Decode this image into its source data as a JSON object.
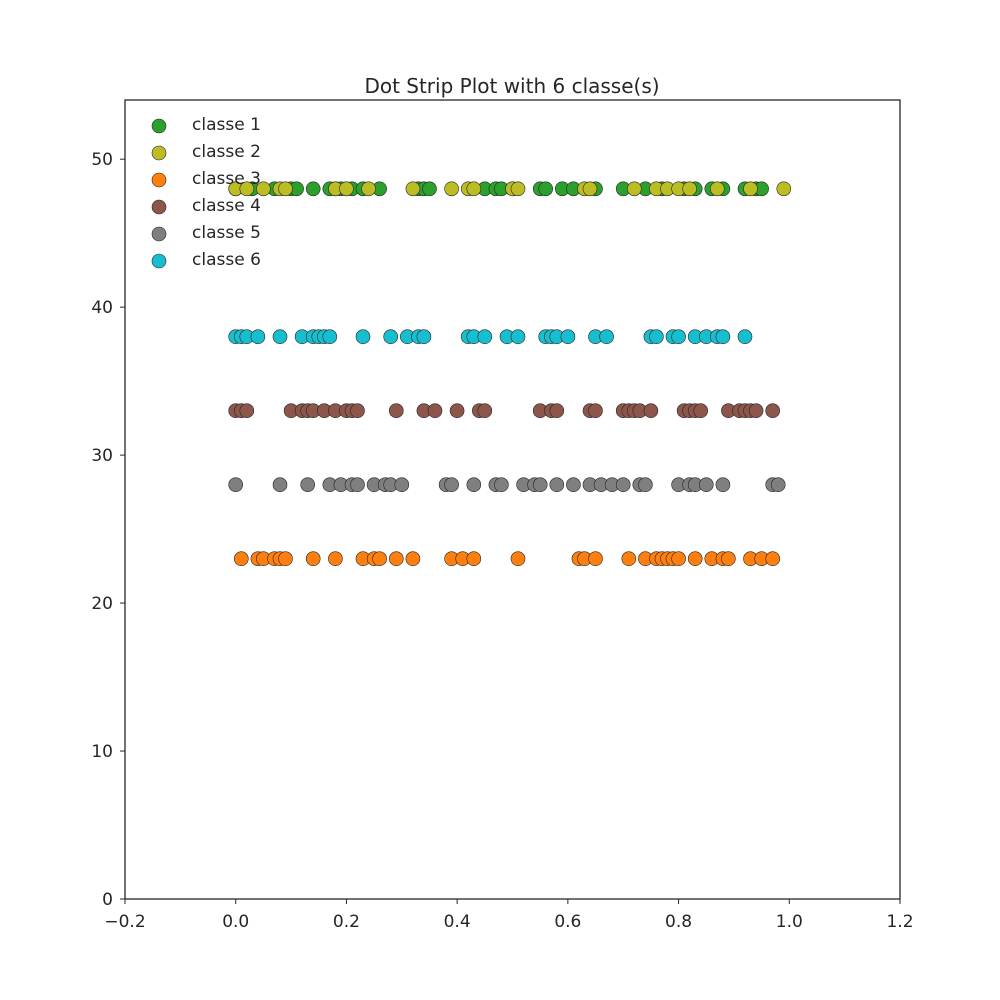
{
  "chart_data": {
    "type": "scatter",
    "title": "Dot Strip Plot with 6 classe(s)",
    "xlabel": "",
    "ylabel": "",
    "xlim": [
      -0.2,
      1.2
    ],
    "ylim": [
      0,
      54
    ],
    "xticks": [
      -0.2,
      0.0,
      0.2,
      0.4,
      0.6,
      0.8,
      1.0,
      1.2
    ],
    "xtick_labels": [
      "−0.2",
      "0.0",
      "0.2",
      "0.4",
      "0.6",
      "0.8",
      "1.0",
      "1.2"
    ],
    "yticks": [
      0,
      10,
      20,
      30,
      40,
      50
    ],
    "ytick_labels": [
      "0",
      "10",
      "20",
      "30",
      "40",
      "50"
    ],
    "grid": false,
    "legend_position": "top-left",
    "series": [
      {
        "name": "classe 1",
        "color": "#2ca02c",
        "y": 48,
        "x": [
          0.0,
          0.03,
          0.07,
          0.1,
          0.11,
          0.14,
          0.17,
          0.18,
          0.19,
          0.2,
          0.21,
          0.23,
          0.26,
          0.33,
          0.34,
          0.35,
          0.45,
          0.47,
          0.48,
          0.5,
          0.55,
          0.56,
          0.59,
          0.61,
          0.65,
          0.7,
          0.74,
          0.77,
          0.81,
          0.83,
          0.86,
          0.88,
          0.92,
          0.94,
          0.95
        ]
      },
      {
        "name": "classe 2",
        "color": "#bcbd22",
        "y": 48,
        "x": [
          0.0,
          0.02,
          0.05,
          0.08,
          0.09,
          0.18,
          0.2,
          0.24,
          0.32,
          0.39,
          0.42,
          0.43,
          0.5,
          0.51,
          0.63,
          0.64,
          0.72,
          0.76,
          0.78,
          0.8,
          0.82,
          0.87,
          0.93,
          0.99
        ]
      },
      {
        "name": "classe 3",
        "color": "#ff7f0e",
        "y": 23,
        "x": [
          0.01,
          0.04,
          0.05,
          0.07,
          0.08,
          0.09,
          0.14,
          0.18,
          0.23,
          0.25,
          0.26,
          0.29,
          0.32,
          0.39,
          0.41,
          0.43,
          0.51,
          0.62,
          0.63,
          0.65,
          0.71,
          0.74,
          0.76,
          0.77,
          0.78,
          0.79,
          0.8,
          0.83,
          0.86,
          0.88,
          0.89,
          0.93,
          0.95,
          0.97
        ]
      },
      {
        "name": "classe 4",
        "color": "#8c564b",
        "y": 33,
        "x": [
          0.0,
          0.01,
          0.02,
          0.1,
          0.12,
          0.13,
          0.14,
          0.16,
          0.18,
          0.2,
          0.21,
          0.22,
          0.29,
          0.34,
          0.36,
          0.4,
          0.44,
          0.45,
          0.55,
          0.57,
          0.58,
          0.64,
          0.65,
          0.7,
          0.71,
          0.72,
          0.73,
          0.75,
          0.81,
          0.82,
          0.83,
          0.84,
          0.89,
          0.91,
          0.92,
          0.93,
          0.94,
          0.97
        ]
      },
      {
        "name": "classe 5",
        "color": "#7f7f7f",
        "y": 28,
        "x": [
          0.0,
          0.08,
          0.13,
          0.17,
          0.19,
          0.21,
          0.22,
          0.25,
          0.27,
          0.28,
          0.3,
          0.38,
          0.39,
          0.43,
          0.47,
          0.48,
          0.52,
          0.54,
          0.55,
          0.58,
          0.61,
          0.64,
          0.66,
          0.68,
          0.7,
          0.73,
          0.74,
          0.8,
          0.82,
          0.83,
          0.85,
          0.88,
          0.97,
          0.98
        ]
      },
      {
        "name": "classe 6",
        "color": "#17becf",
        "y": 38,
        "x": [
          0.0,
          0.01,
          0.02,
          0.04,
          0.08,
          0.12,
          0.14,
          0.15,
          0.16,
          0.17,
          0.23,
          0.28,
          0.31,
          0.33,
          0.34,
          0.42,
          0.43,
          0.45,
          0.49,
          0.51,
          0.56,
          0.57,
          0.58,
          0.6,
          0.65,
          0.67,
          0.75,
          0.76,
          0.79,
          0.8,
          0.83,
          0.85,
          0.87,
          0.88,
          0.92
        ]
      }
    ]
  }
}
